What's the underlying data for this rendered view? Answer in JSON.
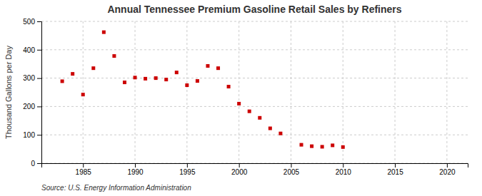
{
  "chart_data": {
    "type": "scatter",
    "title": "Annual Tennessee Premium Gasoline Retail Sales by Refiners",
    "ylabel": "Thousand Gallons per Day",
    "source": "Source: U.S. Energy Information Administration",
    "color": "#cc0000",
    "marker": "square",
    "grid": true,
    "xlim": [
      1981,
      2022
    ],
    "ylim": [
      0,
      500
    ],
    "xticks": [
      1985,
      1990,
      1995,
      2000,
      2005,
      2010,
      2015,
      2020
    ],
    "yticks": [
      0,
      100,
      200,
      300,
      400,
      500
    ],
    "x": [
      1983,
      1984,
      1985,
      1986,
      1987,
      1988,
      1989,
      1990,
      1991,
      1992,
      1993,
      1994,
      1995,
      1996,
      1997,
      1998,
      1999,
      2000,
      2001,
      2002,
      2003,
      2004,
      2006,
      2007,
      2008,
      2009,
      2010
    ],
    "values": [
      289,
      315,
      242,
      335,
      462,
      378,
      285,
      302,
      298,
      300,
      295,
      320,
      275,
      290,
      343,
      335,
      270,
      210,
      183,
      160,
      123,
      105,
      65,
      60,
      58,
      63,
      57
    ]
  }
}
